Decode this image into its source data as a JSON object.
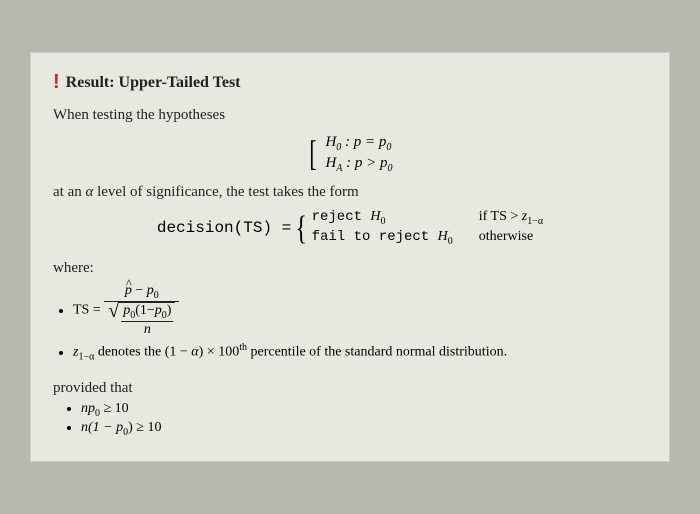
{
  "colors": {
    "outer_bg": "#b8b8b0",
    "page_bg": "#e8e8e0",
    "text": "#222222",
    "accent": "#c62828"
  },
  "typography": {
    "body_family": "Georgia, Times, serif",
    "mono_family": "Courier New, monospace",
    "title_size_pt": 16,
    "body_size_pt": 15
  },
  "header": {
    "bang": "!",
    "title": "Result: Upper-Tailed Test"
  },
  "intro": "When testing the hypotheses",
  "hypotheses": {
    "h0_label": "H",
    "h0_sub": "0",
    "h0_colon": "  :  ",
    "h0_stmt_lhs": "p",
    "h0_stmt_op": " = ",
    "h0_stmt_rhs": "p",
    "h0_stmt_rhs_sub": "0",
    "ha_label": "H",
    "ha_sub": "A",
    "ha_colon": "  :  ",
    "ha_stmt_lhs": "p",
    "ha_stmt_op": " > ",
    "ha_stmt_rhs": "p",
    "ha_stmt_rhs_sub": "0"
  },
  "at_alpha_pre": "at an ",
  "alpha": "α",
  "at_alpha_post": " level of significance, the test takes the form",
  "decision": {
    "lhs": "decision(TS) = ",
    "case1_action": "reject ",
    "case1_H": "H",
    "case1_sub": "0",
    "case1_cond_pre": "if TS > ",
    "case1_z": "z",
    "case1_zsub": "1−α",
    "case2_action": "fail to reject ",
    "case2_H": "H",
    "case2_sub": "0",
    "case2_cond": "otherwise"
  },
  "where_label": "where:",
  "ts": {
    "lead": "TS = ",
    "num_phat": "p",
    "num_minus": " − ",
    "num_p0": "p",
    "num_p0_sub": "0",
    "den_p0": "p",
    "den_p0_sub": "0",
    "den_lpar": "(1−",
    "den_p0b": "p",
    "den_p0b_sub": "0",
    "den_rpar": ")",
    "den_n": "n"
  },
  "zline": {
    "z": "z",
    "zsub": "1−α",
    "mid": " denotes the (1 − ",
    "alpha": "α",
    "post1": ") × 100",
    "th": "th",
    "post2": " percentile of the standard normal distribution."
  },
  "provided": {
    "label": "provided that",
    "c1_pre": "n",
    "c1_p": "p",
    "c1_sub": "0",
    "c1_op": " ≥ 10",
    "c2_pre": "n(1 − ",
    "c2_p": "p",
    "c2_sub": "0",
    "c2_post": ") ≥ 10"
  }
}
